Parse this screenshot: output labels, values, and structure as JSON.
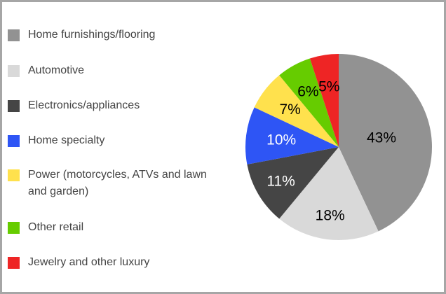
{
  "chart_data": {
    "type": "pie",
    "legend_position": "left",
    "start_angle_deg": 0,
    "direction": "clockwise",
    "slices": [
      {
        "label": "Home furnishings/flooring",
        "value": 43,
        "value_label": "43%",
        "color": "#929292",
        "text_color": "#000000"
      },
      {
        "label": "Automotive",
        "value": 18,
        "value_label": "18%",
        "color": "#d9d9d9",
        "text_color": "#000000"
      },
      {
        "label": "Electronics/appliances",
        "value": 11,
        "value_label": "11%",
        "color": "#454545",
        "text_color": "#ffffff"
      },
      {
        "label": "Home specialty",
        "value": 10,
        "value_label": "10%",
        "color": "#2e55f5",
        "text_color": "#ffffff"
      },
      {
        "label": "Power (motorcycles, ATVs and lawn and garden)",
        "value": 7,
        "value_label": "7%",
        "color": "#ffe14d",
        "text_color": "#000000"
      },
      {
        "label": "Other retail",
        "value": 6,
        "value_label": "6%",
        "color": "#66cc00",
        "text_color": "#000000"
      },
      {
        "label": "Jewelry and other luxury",
        "value": 5,
        "value_label": "5%",
        "color": "#ee2525",
        "text_color": "#000000"
      }
    ]
  }
}
